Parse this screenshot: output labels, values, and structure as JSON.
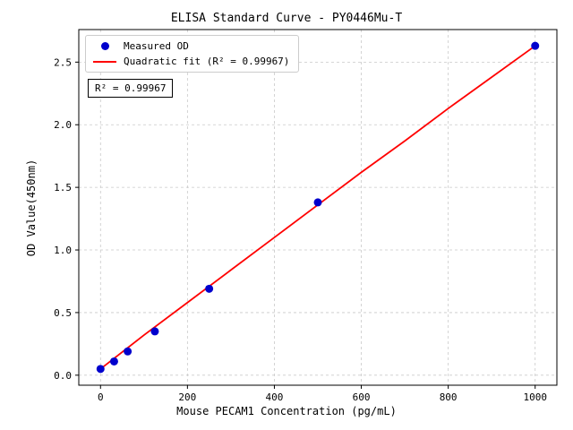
{
  "chart_data": {
    "type": "scatter",
    "title": "ELISA Standard Curve - PY0446Mu-T",
    "xlabel": "Mouse PECAM1 Concentration (pg/mL)",
    "ylabel": "OD Value(450nm)",
    "xlim": [
      -50,
      1050
    ],
    "ylim": [
      -0.08,
      2.76
    ],
    "xtick_values": [
      0,
      200,
      400,
      600,
      800,
      1000
    ],
    "xtick_labels": [
      "0",
      "200",
      "400",
      "600",
      "800",
      "1000"
    ],
    "ytick_values": [
      0.0,
      0.5,
      1.0,
      1.5,
      2.0,
      2.5
    ],
    "ytick_labels": [
      "0.0",
      "0.5",
      "1.0",
      "1.5",
      "2.0",
      "2.5"
    ],
    "grid": true,
    "legend_position": "upper left",
    "annotation": "R² = 0.99967",
    "series": [
      {
        "name": "Measured OD",
        "type": "scatter",
        "color": "#0000cd",
        "x": [
          0,
          31.25,
          62.5,
          125,
          250,
          500,
          1000
        ],
        "y": [
          0.05,
          0.11,
          0.19,
          0.35,
          0.69,
          1.38,
          2.63
        ]
      },
      {
        "name": "Quadratic fit (R² = 0.99967)",
        "type": "line",
        "color": "#ff0000",
        "x": [
          0,
          100,
          200,
          300,
          400,
          500,
          600,
          700,
          800,
          900,
          1000
        ],
        "y": [
          0.05,
          0.32,
          0.58,
          0.84,
          1.1,
          1.36,
          1.62,
          1.87,
          2.13,
          2.38,
          2.63
        ]
      }
    ]
  }
}
